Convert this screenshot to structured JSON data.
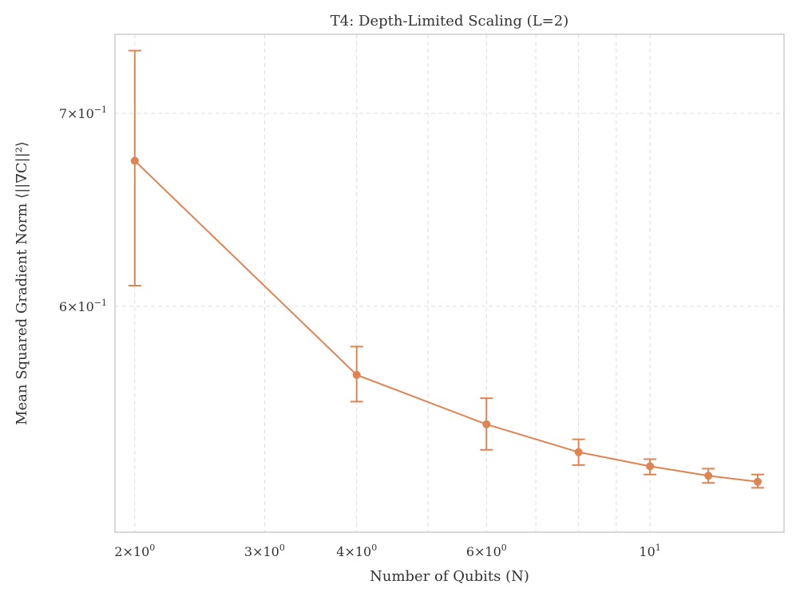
{
  "chart_data": {
    "type": "line",
    "title": "T4: Depth-Limited Scaling (L=2)",
    "xlabel": "Number of Qubits (N)",
    "ylabel": "Mean Squared Gradient Norm ⟨||∇C||²⟩",
    "xscale": "log",
    "yscale": "log",
    "xlim": [
      1.88,
      15.2
    ],
    "ylim": [
      0.5009,
      0.7457
    ],
    "grid": true,
    "color": "#dd8452",
    "x_ticks": [
      {
        "value": 2,
        "mantissa": "2",
        "exponent": "0"
      },
      {
        "value": 3,
        "mantissa": "3",
        "exponent": "0"
      },
      {
        "value": 4,
        "mantissa": "4",
        "exponent": "0"
      },
      {
        "value": 6,
        "mantissa": "6",
        "exponent": "0"
      },
      {
        "value": 10,
        "mantissa": "",
        "exponent": "1"
      }
    ],
    "x_minor_grid": [
      5,
      7,
      8,
      9
    ],
    "y_ticks": [
      {
        "value": 0.6,
        "mantissa": "6",
        "exponent": "−1"
      },
      {
        "value": 0.7,
        "mantissa": "7",
        "exponent": "−1"
      }
    ],
    "series": [
      {
        "x": [
          2,
          4,
          6,
          8,
          10,
          12,
          14
        ],
        "y": [
          0.674,
          0.568,
          0.546,
          0.534,
          0.528,
          0.524,
          0.5215
        ],
        "err_low": [
          0.61,
          0.556,
          0.535,
          0.5285,
          0.5245,
          0.521,
          0.519
        ],
        "err_high": [
          0.736,
          0.581,
          0.5575,
          0.5395,
          0.531,
          0.527,
          0.5245
        ]
      }
    ]
  }
}
